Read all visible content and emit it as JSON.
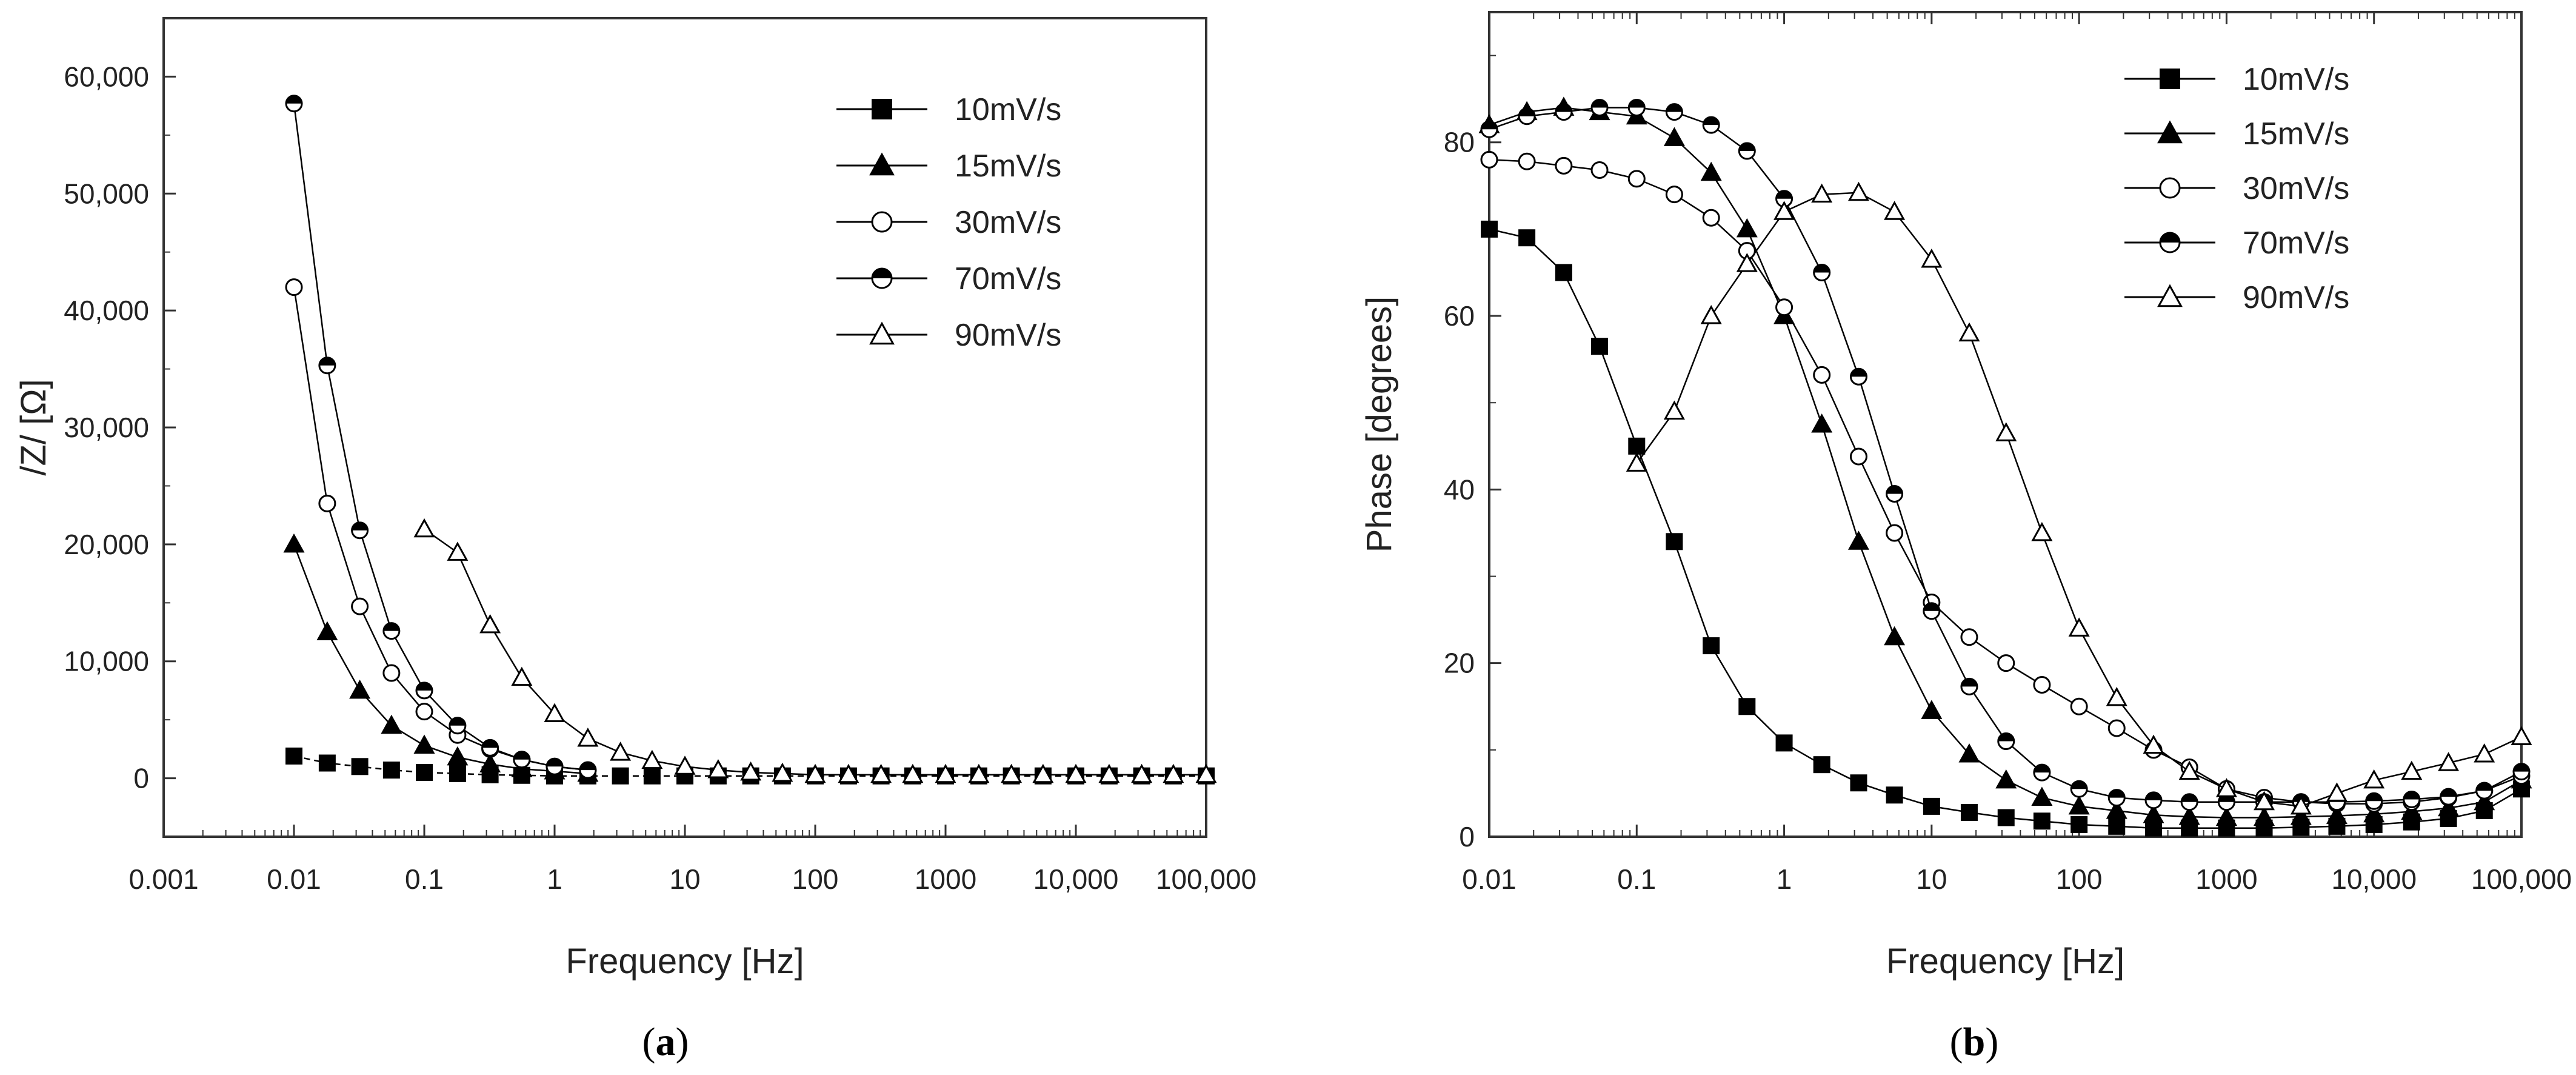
{
  "colors": {
    "ink": "#000000",
    "axis": "#333333",
    "background": "#ffffff"
  },
  "chart_data": [
    {
      "id": "a",
      "type": "line",
      "caption_open": "(",
      "caption_letter": "a",
      "caption_close": ")",
      "title": "",
      "xlabel": "Frequency [Hz]",
      "ylabel": "/Z/ [Ω]",
      "xscale": "log",
      "xlim": [
        0.001,
        100000
      ],
      "ylim": [
        -5000,
        65000
      ],
      "xticks": [
        0.001,
        0.01,
        0.1,
        1,
        10,
        100,
        1000,
        10000,
        100000
      ],
      "xtick_labels": [
        "0.001",
        "0.01",
        "0.1",
        "1",
        "10",
        "100",
        "1000",
        "10,000",
        "100,000"
      ],
      "yticks": [
        0,
        10000,
        20000,
        30000,
        40000,
        50000,
        60000
      ],
      "ytick_labels": [
        "0",
        "10,000",
        "20,000",
        "30,000",
        "40,000",
        "50,000",
        "60,000"
      ],
      "legend_position": "top-right",
      "series": [
        {
          "name": "10mV/s",
          "marker": "square",
          "dashed": true,
          "x": [
            0.01,
            0.018,
            0.032,
            0.056,
            0.1,
            0.18,
            0.32,
            0.56,
            1,
            1.8,
            3.2,
            5.6,
            10,
            18,
            32,
            56,
            100,
            180,
            320,
            560,
            1000,
            1800,
            3200,
            5600,
            10000,
            18000,
            32000,
            56000,
            100000
          ],
          "y": [
            1900,
            1300,
            1000,
            700,
            500,
            400,
            300,
            250,
            200,
            200,
            200,
            200,
            200,
            200,
            200,
            200,
            200,
            200,
            200,
            200,
            200,
            200,
            200,
            200,
            200,
            200,
            200,
            200,
            200
          ]
        },
        {
          "name": "15mV/s",
          "marker": "triangle-filled",
          "dashed": false,
          "x": [
            0.01,
            0.018,
            0.032,
            0.056,
            0.1,
            0.18,
            0.32,
            0.56,
            1,
            1.8
          ],
          "y": [
            20000,
            12500,
            7500,
            4500,
            2800,
            1800,
            1200,
            800,
            600,
            400
          ]
        },
        {
          "name": "30mV/s",
          "marker": "circle-open",
          "dashed": false,
          "x": [
            0.01,
            0.018,
            0.032,
            0.056,
            0.1,
            0.18,
            0.32,
            0.56,
            1,
            1.8
          ],
          "y": [
            42000,
            23500,
            14700,
            9000,
            5700,
            3700,
            2500,
            1600,
            1000,
            700
          ]
        },
        {
          "name": "70mV/s",
          "marker": "circle-half",
          "dashed": false,
          "x": [
            0.01,
            0.018,
            0.032,
            0.056,
            0.1,
            0.18,
            0.32,
            0.56,
            1,
            1.8
          ],
          "y": [
            57700,
            35300,
            21200,
            12600,
            7500,
            4500,
            2600,
            1600,
            1000,
            700
          ]
        },
        {
          "name": "90mV/s",
          "marker": "triangle-open",
          "dashed": false,
          "x": [
            0.1,
            0.18,
            0.32,
            0.56,
            1,
            1.8,
            3.2,
            5.6,
            10,
            18,
            32,
            56,
            100,
            180,
            320,
            560,
            1000,
            1800,
            3200,
            5600,
            10000,
            18000,
            32000,
            56000,
            100000
          ],
          "y": [
            21300,
            19300,
            13100,
            8600,
            5500,
            3400,
            2200,
            1500,
            1000,
            700,
            500,
            400,
            300,
            300,
            300,
            300,
            300,
            300,
            300,
            300,
            300,
            300,
            300,
            300,
            300
          ]
        }
      ]
    },
    {
      "id": "b",
      "type": "line",
      "caption_open": "(",
      "caption_letter": "b",
      "caption_close": ")",
      "title": "",
      "xlabel": "Frequency [Hz]",
      "ylabel": "Phase [degrees]",
      "xscale": "log",
      "xlim": [
        0.01,
        100000
      ],
      "ylim": [
        0,
        95
      ],
      "xticks": [
        0.01,
        0.1,
        1,
        10,
        100,
        1000,
        10000,
        100000
      ],
      "xtick_labels": [
        "0.01",
        "0.1",
        "1",
        "10",
        "100",
        "1000",
        "10,000",
        "100,000"
      ],
      "yticks": [
        0,
        20,
        40,
        60,
        80
      ],
      "ytick_labels": [
        "0",
        "20",
        "40",
        "60",
        "80"
      ],
      "legend_position": "top-right",
      "series": [
        {
          "name": "10mV/s",
          "marker": "square",
          "dashed": false,
          "x": [
            0.01,
            0.018,
            0.032,
            0.056,
            0.1,
            0.18,
            0.32,
            0.56,
            1,
            1.8,
            3.2,
            5.6,
            10,
            18,
            32,
            56,
            100,
            180,
            320,
            560,
            1000,
            1800,
            3200,
            5600,
            10000,
            18000,
            32000,
            56000,
            100000
          ],
          "y": [
            70,
            69,
            65,
            56.5,
            45,
            34,
            22,
            15,
            10.8,
            8.3,
            6.2,
            4.8,
            3.5,
            2.8,
            2.2,
            1.8,
            1.4,
            1.2,
            1,
            1,
            1,
            1,
            1.1,
            1.2,
            1.4,
            1.7,
            2.1,
            3,
            5.5
          ]
        },
        {
          "name": "15mV/s",
          "marker": "triangle-filled",
          "dashed": false,
          "x": [
            0.01,
            0.018,
            0.032,
            0.056,
            0.1,
            0.18,
            0.32,
            0.56,
            1,
            1.8,
            3.2,
            5.6,
            10,
            18,
            32,
            56,
            100,
            180,
            320,
            560,
            1000,
            1800,
            3200,
            5600,
            10000,
            18000,
            32000,
            56000,
            100000
          ],
          "y": [
            82,
            83.5,
            84,
            83.5,
            83,
            80.5,
            76.5,
            70,
            60,
            47.5,
            34,
            23,
            14.5,
            9.5,
            6.5,
            4.5,
            3.5,
            3,
            2.5,
            2.3,
            2.2,
            2.2,
            2.3,
            2.4,
            2.6,
            2.9,
            3.3,
            4,
            6.5
          ]
        },
        {
          "name": "30mV/s",
          "marker": "circle-open",
          "dashed": false,
          "x": [
            0.01,
            0.018,
            0.032,
            0.056,
            0.1,
            0.18,
            0.32,
            0.56,
            1,
            1.8,
            3.2,
            5.6,
            10,
            18,
            32,
            56,
            100,
            180,
            320,
            560,
            1000,
            1800,
            3200,
            5600,
            10000,
            18000,
            32000,
            56000,
            100000
          ],
          "y": [
            78,
            77.8,
            77.3,
            76.8,
            75.8,
            74,
            71.3,
            67.5,
            61,
            53.2,
            43.8,
            35,
            27,
            23,
            20,
            17.5,
            15,
            12.5,
            10,
            8,
            5.5,
            4.5,
            4,
            3.8,
            3.8,
            4,
            4.5,
            5.3,
            7
          ]
        },
        {
          "name": "70mV/s",
          "marker": "circle-half",
          "dashed": false,
          "x": [
            0.01,
            0.018,
            0.032,
            0.056,
            0.1,
            0.18,
            0.32,
            0.56,
            1,
            1.8,
            3.2,
            5.6,
            10,
            18,
            32,
            56,
            100,
            180,
            320,
            560,
            1000,
            1800,
            3200,
            5600,
            10000,
            18000,
            32000,
            56000,
            100000
          ],
          "y": [
            81.5,
            83,
            83.5,
            84,
            84,
            83.5,
            82,
            79,
            73.5,
            65,
            53,
            39.5,
            26,
            17.3,
            11,
            7.4,
            5.5,
            4.5,
            4.2,
            4,
            4,
            4,
            4,
            4,
            4.1,
            4.3,
            4.6,
            5.3,
            7.5
          ]
        },
        {
          "name": "90mV/s",
          "marker": "triangle-open",
          "dashed": false,
          "x": [
            0.1,
            0.18,
            0.32,
            0.56,
            1,
            1.8,
            3.2,
            5.6,
            10,
            18,
            32,
            56,
            100,
            180,
            320,
            560,
            1000,
            1800,
            3200,
            5600,
            10000,
            18000,
            32000,
            56000,
            100000
          ],
          "y": [
            43,
            49,
            60,
            66,
            72,
            74,
            74.2,
            72,
            66.5,
            58,
            46.5,
            35,
            24,
            16,
            10.5,
            7.5,
            5.5,
            4,
            3.5,
            5,
            6.5,
            7.5,
            8.5,
            9.5,
            11.5
          ]
        }
      ]
    }
  ]
}
